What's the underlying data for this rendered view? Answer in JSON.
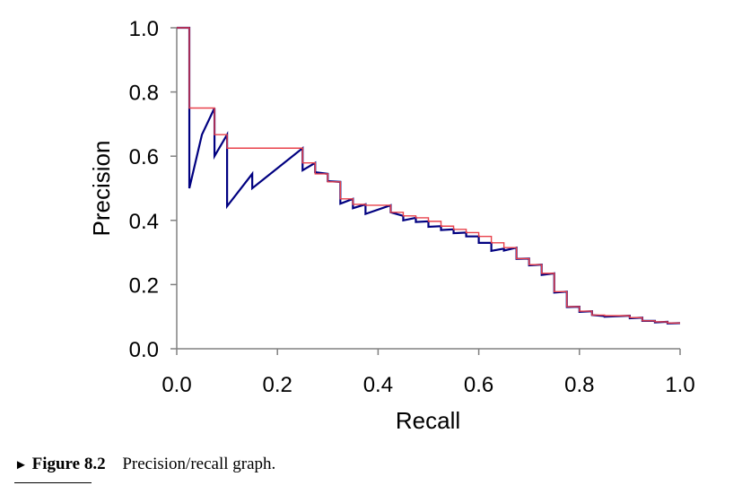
{
  "caption": {
    "marker": "►",
    "label": "Figure 8.2",
    "text": "Precision/recall graph."
  },
  "chart_data": {
    "type": "line",
    "title": "",
    "xlabel": "Recall",
    "ylabel": "Precision",
    "xlim": [
      0.0,
      1.0
    ],
    "ylim": [
      0.0,
      1.0
    ],
    "xticks": [
      "0.0",
      "0.2",
      "0.4",
      "0.6",
      "0.8",
      "1.0"
    ],
    "yticks": [
      "0.0",
      "0.2",
      "0.4",
      "0.6",
      "0.8",
      "1.0"
    ],
    "grid": false,
    "series": [
      {
        "color": "#000080",
        "points": [
          [
            0.0,
            1.0
          ],
          [
            0.025,
            1.0
          ],
          [
            0.025,
            0.5
          ],
          [
            0.05,
            0.667
          ],
          [
            0.075,
            0.75
          ],
          [
            0.075,
            0.6
          ],
          [
            0.1,
            0.667
          ],
          [
            0.1,
            0.444
          ],
          [
            0.15,
            0.545
          ],
          [
            0.15,
            0.5
          ],
          [
            0.25,
            0.625
          ],
          [
            0.25,
            0.556
          ],
          [
            0.275,
            0.579
          ],
          [
            0.275,
            0.55
          ],
          [
            0.3,
            0.545
          ],
          [
            0.3,
            0.522
          ],
          [
            0.325,
            0.52
          ],
          [
            0.325,
            0.452
          ],
          [
            0.35,
            0.467
          ],
          [
            0.35,
            0.438
          ],
          [
            0.375,
            0.45
          ],
          [
            0.375,
            0.42
          ],
          [
            0.425,
            0.447
          ],
          [
            0.425,
            0.425
          ],
          [
            0.45,
            0.414
          ],
          [
            0.45,
            0.4
          ],
          [
            0.475,
            0.408
          ],
          [
            0.475,
            0.395
          ],
          [
            0.5,
            0.397
          ],
          [
            0.5,
            0.38
          ],
          [
            0.525,
            0.382
          ],
          [
            0.525,
            0.37
          ],
          [
            0.55,
            0.372
          ],
          [
            0.55,
            0.36
          ],
          [
            0.575,
            0.362
          ],
          [
            0.575,
            0.35
          ],
          [
            0.6,
            0.35
          ],
          [
            0.6,
            0.33
          ],
          [
            0.625,
            0.33
          ],
          [
            0.625,
            0.305
          ],
          [
            0.65,
            0.312
          ],
          [
            0.65,
            0.306
          ],
          [
            0.675,
            0.315
          ],
          [
            0.675,
            0.28
          ],
          [
            0.7,
            0.281
          ],
          [
            0.7,
            0.26
          ],
          [
            0.725,
            0.262
          ],
          [
            0.725,
            0.23
          ],
          [
            0.75,
            0.235
          ],
          [
            0.75,
            0.175
          ],
          [
            0.775,
            0.178
          ],
          [
            0.775,
            0.13
          ],
          [
            0.8,
            0.131
          ],
          [
            0.8,
            0.115
          ],
          [
            0.825,
            0.117
          ],
          [
            0.825,
            0.105
          ],
          [
            0.85,
            0.102
          ],
          [
            0.85,
            0.1
          ],
          [
            0.9,
            0.103
          ],
          [
            0.9,
            0.095
          ],
          [
            0.925,
            0.097
          ],
          [
            0.925,
            0.087
          ],
          [
            0.95,
            0.087
          ],
          [
            0.95,
            0.082
          ],
          [
            0.975,
            0.084
          ],
          [
            0.975,
            0.079
          ],
          [
            1.0,
            0.08
          ]
        ]
      },
      {
        "color": "#e8404a",
        "points": [
          [
            0.0,
            1.0
          ],
          [
            0.025,
            1.0
          ],
          [
            0.025,
            0.75
          ],
          [
            0.075,
            0.75
          ],
          [
            0.075,
            0.667
          ],
          [
            0.1,
            0.667
          ],
          [
            0.1,
            0.625
          ],
          [
            0.25,
            0.625
          ],
          [
            0.25,
            0.579
          ],
          [
            0.275,
            0.579
          ],
          [
            0.275,
            0.545
          ],
          [
            0.3,
            0.545
          ],
          [
            0.3,
            0.52
          ],
          [
            0.325,
            0.52
          ],
          [
            0.325,
            0.467
          ],
          [
            0.35,
            0.467
          ],
          [
            0.35,
            0.45
          ],
          [
            0.375,
            0.45
          ],
          [
            0.375,
            0.447
          ],
          [
            0.425,
            0.447
          ],
          [
            0.425,
            0.425
          ],
          [
            0.45,
            0.425
          ],
          [
            0.45,
            0.414
          ],
          [
            0.475,
            0.414
          ],
          [
            0.475,
            0.408
          ],
          [
            0.5,
            0.408
          ],
          [
            0.5,
            0.397
          ],
          [
            0.525,
            0.397
          ],
          [
            0.525,
            0.382
          ],
          [
            0.55,
            0.382
          ],
          [
            0.55,
            0.372
          ],
          [
            0.575,
            0.372
          ],
          [
            0.575,
            0.362
          ],
          [
            0.6,
            0.362
          ],
          [
            0.6,
            0.35
          ],
          [
            0.625,
            0.35
          ],
          [
            0.625,
            0.33
          ],
          [
            0.65,
            0.33
          ],
          [
            0.65,
            0.315
          ],
          [
            0.675,
            0.315
          ],
          [
            0.675,
            0.281
          ],
          [
            0.7,
            0.281
          ],
          [
            0.7,
            0.262
          ],
          [
            0.725,
            0.262
          ],
          [
            0.725,
            0.235
          ],
          [
            0.75,
            0.235
          ],
          [
            0.75,
            0.178
          ],
          [
            0.775,
            0.178
          ],
          [
            0.775,
            0.131
          ],
          [
            0.8,
            0.131
          ],
          [
            0.8,
            0.117
          ],
          [
            0.825,
            0.117
          ],
          [
            0.825,
            0.105
          ],
          [
            0.85,
            0.105
          ],
          [
            0.85,
            0.103
          ],
          [
            0.9,
            0.103
          ],
          [
            0.9,
            0.097
          ],
          [
            0.925,
            0.097
          ],
          [
            0.925,
            0.087
          ],
          [
            0.95,
            0.087
          ],
          [
            0.95,
            0.084
          ],
          [
            0.975,
            0.084
          ],
          [
            0.975,
            0.08
          ],
          [
            1.0,
            0.08
          ]
        ]
      }
    ]
  }
}
